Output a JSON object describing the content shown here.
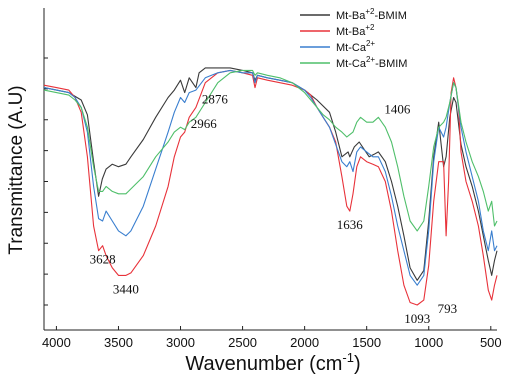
{
  "chart_data": {
    "type": "line",
    "xlabel": "Wavenumber (cm",
    "xlabel_sup": "-1",
    "xlabel_end": ")",
    "ylabel": "Transmittance (A.U)",
    "xlim": [
      4100,
      450
    ],
    "ylim": [
      0,
      100
    ],
    "x_reversed": true,
    "y_tick_labels_shown": false,
    "grid": false,
    "legend_position": "top-right",
    "x_ticks": [
      4000,
      3500,
      3000,
      2500,
      2000,
      1500,
      1000,
      500
    ],
    "y_ticks": [
      0,
      12.5,
      25,
      37.5,
      50,
      62.5,
      75,
      87.5,
      100
    ],
    "series": [
      {
        "name_main": "Mt-Ba",
        "name_sup": "+2",
        "name_tail": "-BMIM",
        "color": "#3a3a3a",
        "points": [
          [
            4100,
            88
          ],
          [
            4000,
            87
          ],
          [
            3900,
            86
          ],
          [
            3800,
            83
          ],
          [
            3750,
            77
          ],
          [
            3700,
            58
          ],
          [
            3660,
            44
          ],
          [
            3630,
            51
          ],
          [
            3600,
            55
          ],
          [
            3550,
            57
          ],
          [
            3500,
            56
          ],
          [
            3440,
            57
          ],
          [
            3400,
            60
          ],
          [
            3300,
            67
          ],
          [
            3200,
            76
          ],
          [
            3100,
            84
          ],
          [
            3050,
            87
          ],
          [
            3000,
            91
          ],
          [
            2966,
            86
          ],
          [
            2930,
            92
          ],
          [
            2876,
            88
          ],
          [
            2850,
            94
          ],
          [
            2800,
            96
          ],
          [
            2600,
            96
          ],
          [
            2500,
            95
          ],
          [
            2420,
            94
          ],
          [
            2400,
            91
          ],
          [
            2380,
            93
          ],
          [
            2300,
            92
          ],
          [
            2200,
            91
          ],
          [
            2100,
            90
          ],
          [
            2000,
            87
          ],
          [
            1900,
            83
          ],
          [
            1800,
            78
          ],
          [
            1750,
            70
          ],
          [
            1700,
            60
          ],
          [
            1650,
            62
          ],
          [
            1636,
            60
          ],
          [
            1600,
            64
          ],
          [
            1560,
            66
          ],
          [
            1520,
            63
          ],
          [
            1480,
            60
          ],
          [
            1440,
            61
          ],
          [
            1406,
            62
          ],
          [
            1350,
            58
          ],
          [
            1300,
            50
          ],
          [
            1250,
            40
          ],
          [
            1200,
            28
          ],
          [
            1150,
            15
          ],
          [
            1093,
            10
          ],
          [
            1040,
            14
          ],
          [
            1000,
            34
          ],
          [
            960,
            60
          ],
          [
            920,
            74
          ],
          [
            880,
            56
          ],
          [
            860,
            60
          ],
          [
            830,
            76
          ],
          [
            800,
            84
          ],
          [
            780,
            82
          ],
          [
            740,
            65
          ],
          [
            700,
            56
          ],
          [
            650,
            48
          ],
          [
            600,
            38
          ],
          [
            560,
            28
          ],
          [
            520,
            18
          ],
          [
            493,
            12
          ],
          [
            470,
            18
          ],
          [
            450,
            22
          ]
        ]
      },
      {
        "name_main": "Mt-Ba",
        "name_sup": "+2",
        "name_tail": "",
        "color": "#e8323a",
        "points": [
          [
            4100,
            89
          ],
          [
            4000,
            88
          ],
          [
            3900,
            87
          ],
          [
            3850,
            84
          ],
          [
            3800,
            78
          ],
          [
            3750,
            60
          ],
          [
            3700,
            32
          ],
          [
            3660,
            22
          ],
          [
            3628,
            24
          ],
          [
            3600,
            20
          ],
          [
            3550,
            15
          ],
          [
            3500,
            12
          ],
          [
            3440,
            12
          ],
          [
            3400,
            13
          ],
          [
            3300,
            20
          ],
          [
            3200,
            32
          ],
          [
            3100,
            48
          ],
          [
            3050,
            60
          ],
          [
            3000,
            68
          ],
          [
            2966,
            70
          ],
          [
            2930,
            76
          ],
          [
            2876,
            80
          ],
          [
            2800,
            90
          ],
          [
            2700,
            94
          ],
          [
            2600,
            95
          ],
          [
            2500,
            94
          ],
          [
            2420,
            93
          ],
          [
            2400,
            88
          ],
          [
            2380,
            92
          ],
          [
            2300,
            91
          ],
          [
            2200,
            90
          ],
          [
            2100,
            89
          ],
          [
            2000,
            87
          ],
          [
            1950,
            85
          ],
          [
            1900,
            80
          ],
          [
            1850,
            76
          ],
          [
            1800,
            72
          ],
          [
            1750,
            66
          ],
          [
            1700,
            52
          ],
          [
            1660,
            40
          ],
          [
            1636,
            38
          ],
          [
            1610,
            45
          ],
          [
            1580,
            56
          ],
          [
            1550,
            60
          ],
          [
            1500,
            58
          ],
          [
            1450,
            57
          ],
          [
            1406,
            56
          ],
          [
            1350,
            50
          ],
          [
            1300,
            38
          ],
          [
            1250,
            22
          ],
          [
            1200,
            8
          ],
          [
            1150,
            1
          ],
          [
            1093,
            0
          ],
          [
            1040,
            2
          ],
          [
            1000,
            16
          ],
          [
            960,
            42
          ],
          [
            920,
            58
          ],
          [
            880,
            58
          ],
          [
            860,
            28
          ],
          [
            840,
            50
          ],
          [
            820,
            86
          ],
          [
            800,
            92
          ],
          [
            780,
            88
          ],
          [
            760,
            80
          ],
          [
            740,
            62
          ],
          [
            700,
            50
          ],
          [
            650,
            42
          ],
          [
            600,
            32
          ],
          [
            560,
            20
          ],
          [
            520,
            6
          ],
          [
            493,
            2
          ],
          [
            470,
            8
          ],
          [
            450,
            12
          ]
        ]
      },
      {
        "name_main": "Mt-Ca",
        "name_sup": "2+",
        "name_tail": "",
        "color": "#3a7fcf",
        "points": [
          [
            4100,
            88
          ],
          [
            4000,
            87
          ],
          [
            3900,
            86
          ],
          [
            3850,
            84
          ],
          [
            3800,
            80
          ],
          [
            3750,
            70
          ],
          [
            3700,
            48
          ],
          [
            3660,
            35
          ],
          [
            3628,
            34
          ],
          [
            3600,
            38
          ],
          [
            3550,
            34
          ],
          [
            3500,
            30
          ],
          [
            3440,
            28
          ],
          [
            3400,
            30
          ],
          [
            3300,
            40
          ],
          [
            3200,
            55
          ],
          [
            3100,
            70
          ],
          [
            3050,
            78
          ],
          [
            3000,
            84
          ],
          [
            2966,
            82
          ],
          [
            2930,
            86
          ],
          [
            2876,
            87
          ],
          [
            2800,
            92
          ],
          [
            2700,
            94
          ],
          [
            2600,
            95
          ],
          [
            2500,
            94
          ],
          [
            2420,
            94
          ],
          [
            2400,
            90
          ],
          [
            2380,
            93
          ],
          [
            2300,
            92
          ],
          [
            2200,
            91
          ],
          [
            2100,
            90
          ],
          [
            2000,
            87
          ],
          [
            1950,
            84
          ],
          [
            1900,
            80
          ],
          [
            1850,
            76
          ],
          [
            1800,
            72
          ],
          [
            1750,
            65
          ],
          [
            1700,
            58
          ],
          [
            1660,
            56
          ],
          [
            1636,
            58
          ],
          [
            1610,
            54
          ],
          [
            1580,
            62
          ],
          [
            1550,
            64
          ],
          [
            1500,
            62
          ],
          [
            1450,
            60
          ],
          [
            1406,
            60
          ],
          [
            1350,
            54
          ],
          [
            1300,
            44
          ],
          [
            1250,
            32
          ],
          [
            1200,
            22
          ],
          [
            1150,
            12
          ],
          [
            1093,
            8
          ],
          [
            1040,
            12
          ],
          [
            1000,
            30
          ],
          [
            960,
            58
          ],
          [
            920,
            72
          ],
          [
            880,
            68
          ],
          [
            860,
            72
          ],
          [
            830,
            82
          ],
          [
            800,
            90
          ],
          [
            780,
            88
          ],
          [
            740,
            72
          ],
          [
            700,
            62
          ],
          [
            650,
            52
          ],
          [
            600,
            42
          ],
          [
            560,
            30
          ],
          [
            520,
            22
          ],
          [
            493,
            30
          ],
          [
            470,
            22
          ],
          [
            450,
            24
          ]
        ]
      },
      {
        "name_main": "Mt-Ca",
        "name_sup": "2+",
        "name_tail": "-BMIM",
        "color": "#4fbf6a",
        "points": [
          [
            4100,
            87
          ],
          [
            4000,
            86
          ],
          [
            3900,
            85
          ],
          [
            3850,
            83
          ],
          [
            3800,
            80
          ],
          [
            3750,
            72
          ],
          [
            3700,
            56
          ],
          [
            3660,
            46
          ],
          [
            3628,
            46
          ],
          [
            3600,
            48
          ],
          [
            3550,
            46
          ],
          [
            3500,
            45
          ],
          [
            3440,
            45
          ],
          [
            3400,
            47
          ],
          [
            3300,
            52
          ],
          [
            3200,
            60
          ],
          [
            3100,
            66
          ],
          [
            3050,
            70
          ],
          [
            3000,
            72
          ],
          [
            2966,
            71
          ],
          [
            2930,
            74
          ],
          [
            2876,
            76
          ],
          [
            2800,
            82
          ],
          [
            2700,
            90
          ],
          [
            2600,
            94
          ],
          [
            2500,
            95
          ],
          [
            2420,
            95
          ],
          [
            2400,
            93
          ],
          [
            2380,
            94
          ],
          [
            2300,
            93
          ],
          [
            2200,
            92
          ],
          [
            2100,
            90
          ],
          [
            2000,
            86
          ],
          [
            1950,
            83
          ],
          [
            1900,
            80
          ],
          [
            1850,
            77
          ],
          [
            1800,
            75
          ],
          [
            1750,
            72
          ],
          [
            1700,
            70
          ],
          [
            1660,
            68
          ],
          [
            1636,
            69
          ],
          [
            1610,
            70
          ],
          [
            1580,
            74
          ],
          [
            1550,
            76
          ],
          [
            1500,
            74
          ],
          [
            1450,
            74
          ],
          [
            1406,
            76
          ],
          [
            1350,
            72
          ],
          [
            1300,
            66
          ],
          [
            1250,
            56
          ],
          [
            1200,
            44
          ],
          [
            1150,
            34
          ],
          [
            1093,
            30
          ],
          [
            1040,
            34
          ],
          [
            1000,
            48
          ],
          [
            960,
            64
          ],
          [
            920,
            72
          ],
          [
            880,
            74
          ],
          [
            860,
            76
          ],
          [
            830,
            82
          ],
          [
            800,
            90
          ],
          [
            780,
            88
          ],
          [
            740,
            74
          ],
          [
            700,
            66
          ],
          [
            650,
            58
          ],
          [
            600,
            52
          ],
          [
            560,
            46
          ],
          [
            520,
            38
          ],
          [
            493,
            42
          ],
          [
            470,
            32
          ],
          [
            450,
            34
          ]
        ]
      }
    ],
    "annotations": [
      {
        "text": "3628",
        "x": 3628,
        "y": 24,
        "anchor": "below"
      },
      {
        "text": "3440",
        "x": 3440,
        "y": 12,
        "anchor": "below"
      },
      {
        "text": "2966",
        "x": 2966,
        "y": 70,
        "anchor": "right"
      },
      {
        "text": "2876",
        "x": 2876,
        "y": 80,
        "anchor": "right"
      },
      {
        "text": "1636",
        "x": 1636,
        "y": 38,
        "anchor": "below"
      },
      {
        "text": "1406",
        "x": 1406,
        "y": 76,
        "anchor": "right"
      },
      {
        "text": "1093",
        "x": 1093,
        "y": 0,
        "anchor": "below"
      },
      {
        "text": "793",
        "x": 850,
        "y": 4,
        "anchor": "below"
      }
    ]
  }
}
